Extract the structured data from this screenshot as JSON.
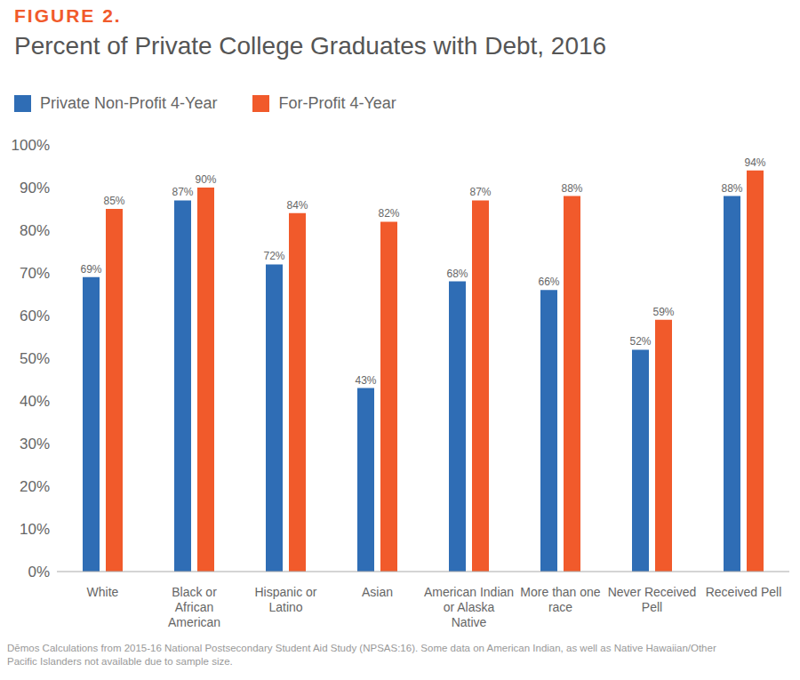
{
  "chart_data": {
    "type": "bar",
    "figure_label": "FIGURE 2.",
    "title": "Percent of Private College Graduates with Debt, 2016",
    "source": "Dēmos Calculations from 2015-16 National Postsecondary Student Aid Study (NPSAS:16). Some data on American Indian, as well as Native Hawaiian/Other Pacific Islanders not available due to sample size.",
    "categories": [
      "White",
      "Black or African American",
      "Hispanic or Latino",
      "Asian",
      "American Indian or Alaska Native",
      "More than one race",
      "Never Received Pell",
      "Received Pell"
    ],
    "series": [
      {
        "name": "Private Non-Profit 4-Year",
        "color": "#2f6db5",
        "values": [
          69,
          87,
          72,
          43,
          68,
          66,
          52,
          88
        ],
        "value_labels": [
          "69%",
          "87%",
          "72%",
          "43%",
          "68%",
          "66%",
          "52%",
          "88%"
        ]
      },
      {
        "name": "For-Profit 4-Year",
        "color": "#f15a2b",
        "values": [
          85,
          90,
          84,
          82,
          87,
          88,
          59,
          94
        ],
        "value_labels": [
          "85%",
          "90%",
          "84%",
          "82%",
          "87%",
          "88%",
          "59%",
          "94%"
        ]
      }
    ],
    "ylim": [
      0,
      100
    ],
    "yticks": [
      {
        "value": 0,
        "label": "0%"
      },
      {
        "value": 10,
        "label": "10%"
      },
      {
        "value": 20,
        "label": "20%"
      },
      {
        "value": 30,
        "label": "30%"
      },
      {
        "value": 40,
        "label": "40%"
      },
      {
        "value": 50,
        "label": "50%"
      },
      {
        "value": 60,
        "label": "60%"
      },
      {
        "value": 70,
        "label": "70%"
      },
      {
        "value": 80,
        "label": "80%"
      },
      {
        "value": 90,
        "label": "90%"
      },
      {
        "value": 100,
        "label": "100%"
      }
    ],
    "grid": false,
    "legend": "top-left",
    "data_labels": true
  }
}
